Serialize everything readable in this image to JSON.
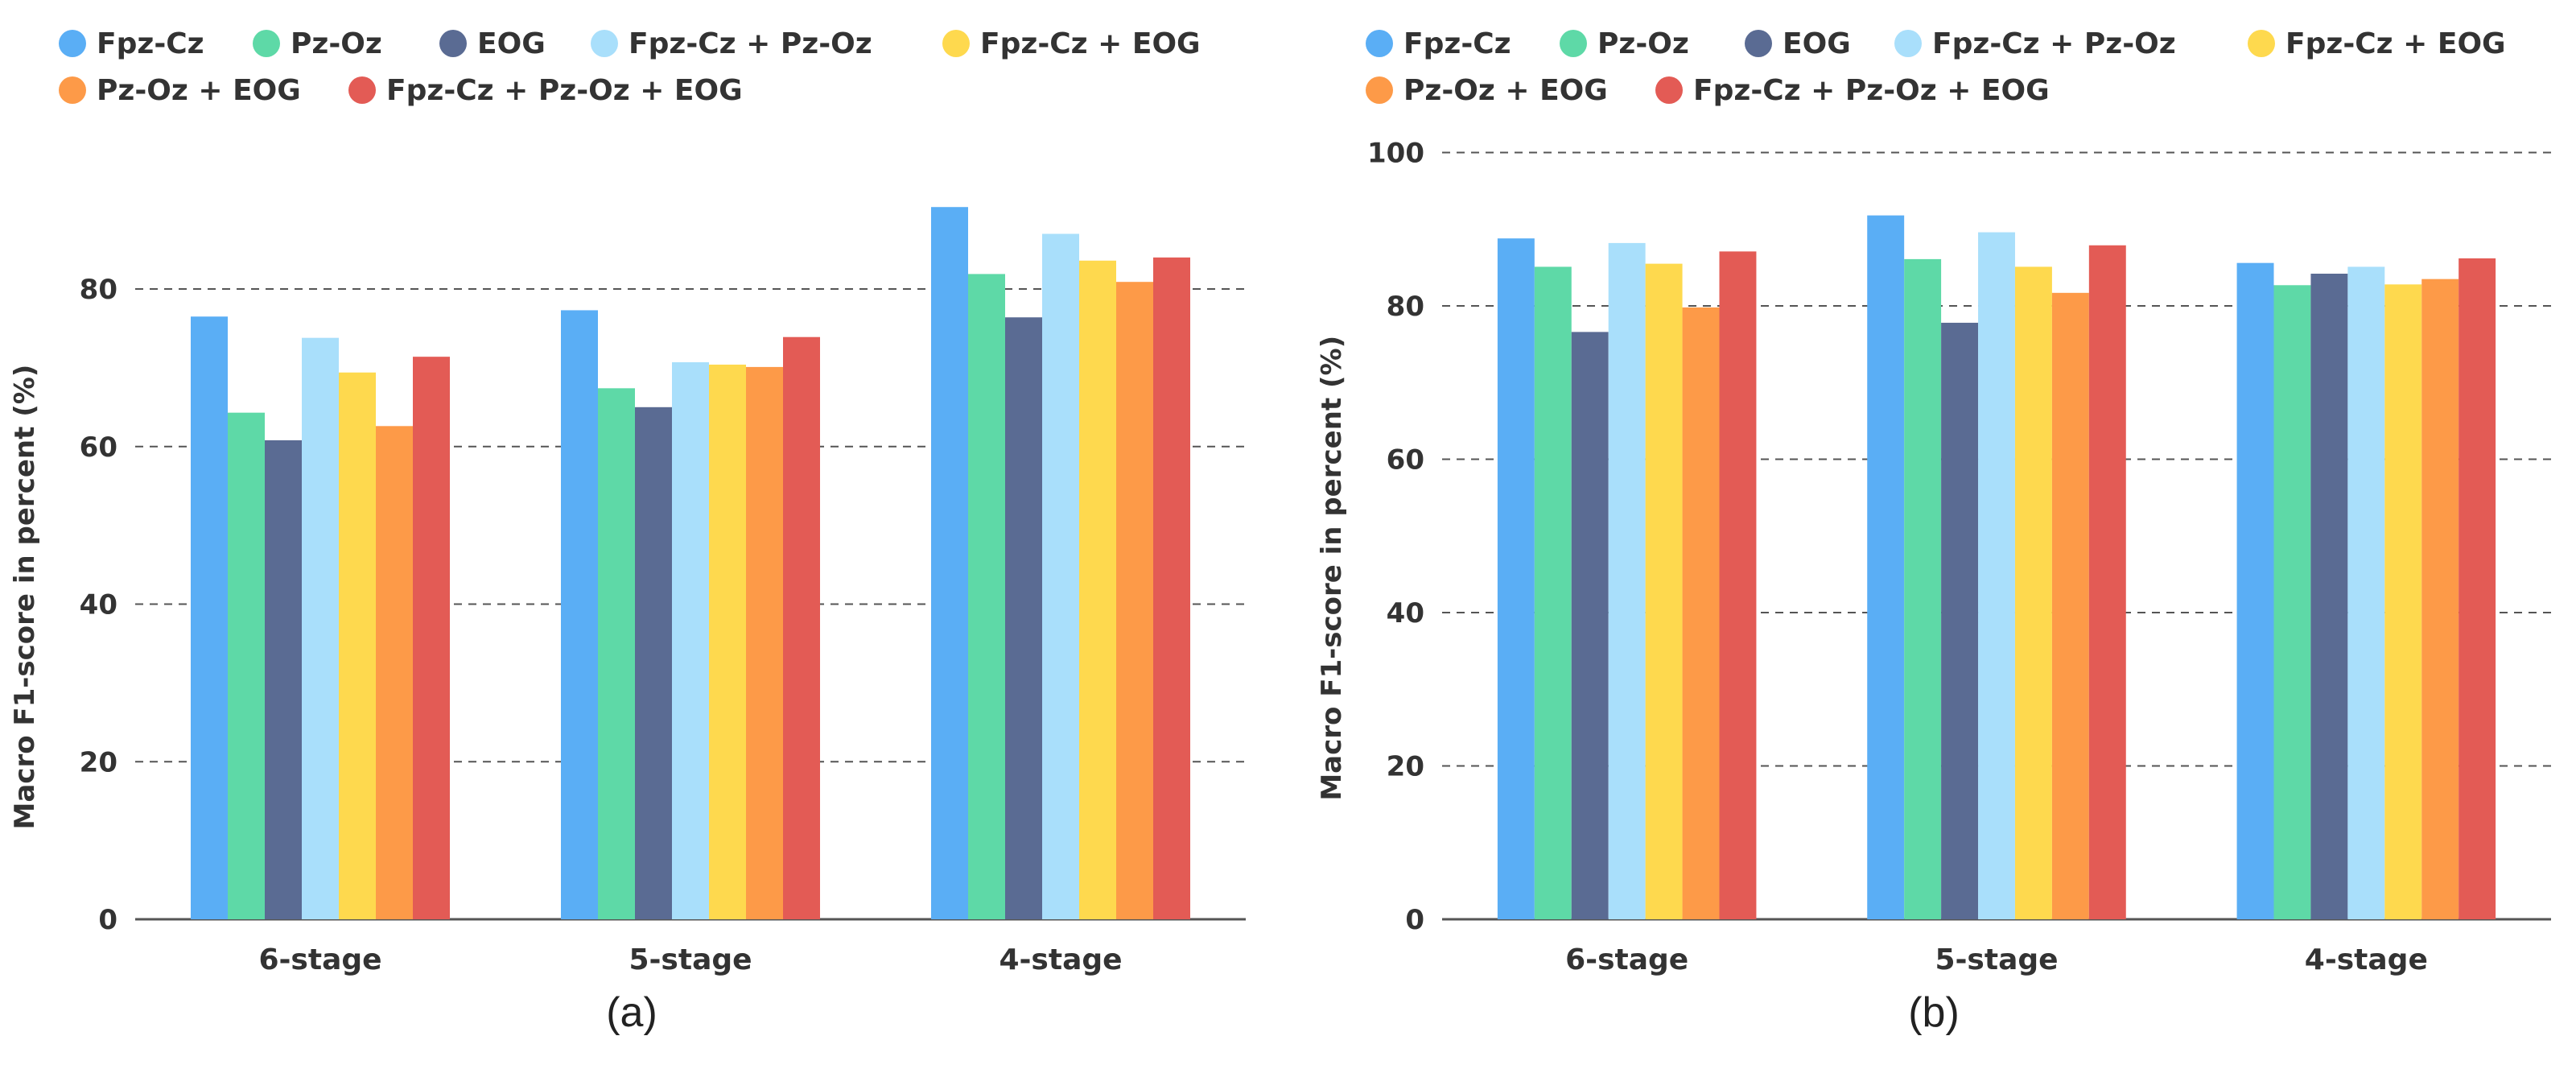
{
  "colors": {
    "Fpz-Cz": "#5aaef5",
    "Pz-Oz": "#5ed9a7",
    "EOG": "#5a6b93",
    "Fpz-Cz + Pz-Oz": "#a9dffb",
    "Fpz-Cz + EOG": "#fed94e",
    "Pz-Oz + EOG": "#fd9a48",
    "Fpz-Cz + Pz-Oz + EOG": "#e35b55"
  },
  "chart_data": [
    {
      "type": "bar",
      "panel_label": "(a)",
      "ylabel": "Macro F1-score in percent (%)",
      "xlabel": "",
      "categories": [
        "6-stage",
        "5-stage",
        "4-stage"
      ],
      "ylim": [
        0,
        90
      ],
      "yticks": [
        0,
        20,
        40,
        60,
        80
      ],
      "grid": true,
      "legend_position": "top",
      "series": [
        {
          "name": "Fpz-Cz",
          "values": [
            76.5,
            77.3,
            90.4
          ]
        },
        {
          "name": "Pz-Oz",
          "values": [
            64.3,
            67.4,
            81.9
          ]
        },
        {
          "name": "EOG",
          "values": [
            60.8,
            65.0,
            76.4
          ]
        },
        {
          "name": "Fpz-Cz + Pz-Oz",
          "values": [
            73.8,
            70.7,
            87.0
          ]
        },
        {
          "name": "Fpz-Cz + EOG",
          "values": [
            69.4,
            70.4,
            83.6
          ]
        },
        {
          "name": "Pz-Oz + EOG",
          "values": [
            62.6,
            70.1,
            80.9
          ]
        },
        {
          "name": "Fpz-Cz + Pz-Oz + EOG",
          "values": [
            71.4,
            73.9,
            84.0
          ]
        }
      ]
    },
    {
      "type": "bar",
      "panel_label": "(b)",
      "ylabel": "Macro F1-score in percent (%)",
      "xlabel": "",
      "categories": [
        "6-stage",
        "5-stage",
        "4-stage"
      ],
      "ylim": [
        0,
        100
      ],
      "yticks": [
        0,
        20,
        40,
        60,
        80,
        100
      ],
      "grid": true,
      "legend_position": "top",
      "series": [
        {
          "name": "Fpz-Cz",
          "values": [
            88.8,
            91.8,
            85.6
          ]
        },
        {
          "name": "Pz-Oz",
          "values": [
            85.1,
            86.1,
            82.7
          ]
        },
        {
          "name": "EOG",
          "values": [
            76.6,
            77.8,
            84.2
          ]
        },
        {
          "name": "Fpz-Cz + Pz-Oz",
          "values": [
            88.2,
            89.6,
            85.1
          ]
        },
        {
          "name": "Fpz-Cz + EOG",
          "values": [
            85.5,
            85.1,
            82.8
          ]
        },
        {
          "name": "Pz-Oz + EOG",
          "values": [
            79.8,
            81.7,
            83.5
          ]
        },
        {
          "name": "Fpz-Cz + Pz-Oz + EOG",
          "values": [
            87.1,
            87.9,
            86.2
          ]
        }
      ]
    }
  ]
}
